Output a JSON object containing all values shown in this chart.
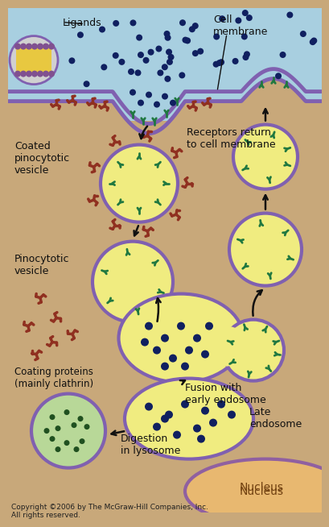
{
  "bg_color": "#c8a87a",
  "cell_fluid_color": "#a8cfe0",
  "membrane_color": "#8060b0",
  "vesicle_fill": "#f0ec80",
  "vesicle_border": "#8060b0",
  "lysosome_fill": "#b8d898",
  "lysosome_border": "#8060b0",
  "nucleus_fill": "#e8b870",
  "nucleus_border": "#9060a0",
  "dot_color": "#102060",
  "receptor_color": "#207840",
  "clathrin_color": "#903020",
  "arrow_color": "#101010",
  "text_color": "#101010",
  "bilayer_yellow": "#e8c840",
  "bilayer_dot": "#805090",
  "copyright_text": "Copyright ©2006 by The McGraw-Hill Companies, Inc.\nAll rights reserved."
}
